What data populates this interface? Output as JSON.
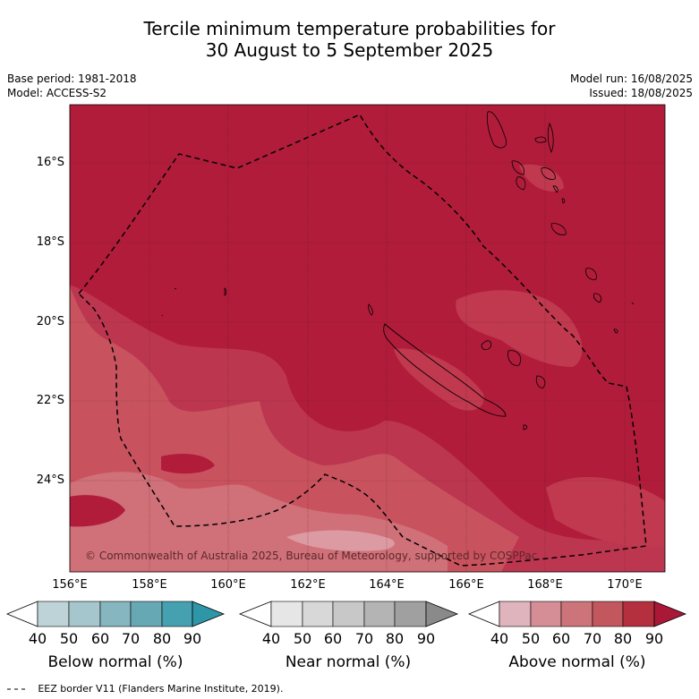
{
  "title": {
    "line1": "Tercile minimum temperature probabilities for",
    "line2": "30 August to 5 September 2025"
  },
  "meta": {
    "base_period": "Base period: 1981-2018",
    "model": "Model: ACCESS-S2",
    "model_run": "Model run: 16/08/2025",
    "issued": "Issued: 18/08/2025"
  },
  "map": {
    "lat_labels": [
      "16°S",
      "18°S",
      "20°S",
      "22°S",
      "24°S"
    ],
    "lon_labels": [
      "156°E",
      "158°E",
      "160°E",
      "162°E",
      "164°E",
      "166°E",
      "168°E",
      "170°E"
    ],
    "copyright": "© Commonwealth of Australia 2025, Bureau of Meteorology, supported by COSPPac",
    "colors": {
      "above_80_90": "#b11c3b",
      "above_70_80": "#c0394f",
      "above_60_70": "#c8535f",
      "above_50_60": "#d2707a",
      "above_40_50": "#dfa3ad"
    }
  },
  "colorbars": [
    {
      "title": "Below normal (%)",
      "ticks": [
        "40",
        "50",
        "60",
        "70",
        "80",
        "90"
      ],
      "colors": [
        "#ffffff",
        "#bdd3d8",
        "#a4c6cc",
        "#86b6c0",
        "#67a8b5",
        "#45a0b0",
        "#2f96a8"
      ]
    },
    {
      "title": "Near normal (%)",
      "ticks": [
        "40",
        "50",
        "60",
        "70",
        "80",
        "90"
      ],
      "colors": [
        "#ffffff",
        "#e6e6e6",
        "#d8d8d8",
        "#c8c8c8",
        "#b4b4b4",
        "#a0a0a0",
        "#8a8a8a"
      ]
    },
    {
      "title": "Above normal (%)",
      "ticks": [
        "40",
        "50",
        "60",
        "70",
        "80",
        "90"
      ],
      "colors": [
        "#ffffff",
        "#dfb4bc",
        "#d68e96",
        "#cc7479",
        "#c2575e",
        "#b4303f",
        "#aa1838"
      ]
    }
  ],
  "legend": {
    "eez_symbol": "-- -- --",
    "eez_text": "EEZ border V11 (Flanders Marine Institute, 2019)."
  }
}
